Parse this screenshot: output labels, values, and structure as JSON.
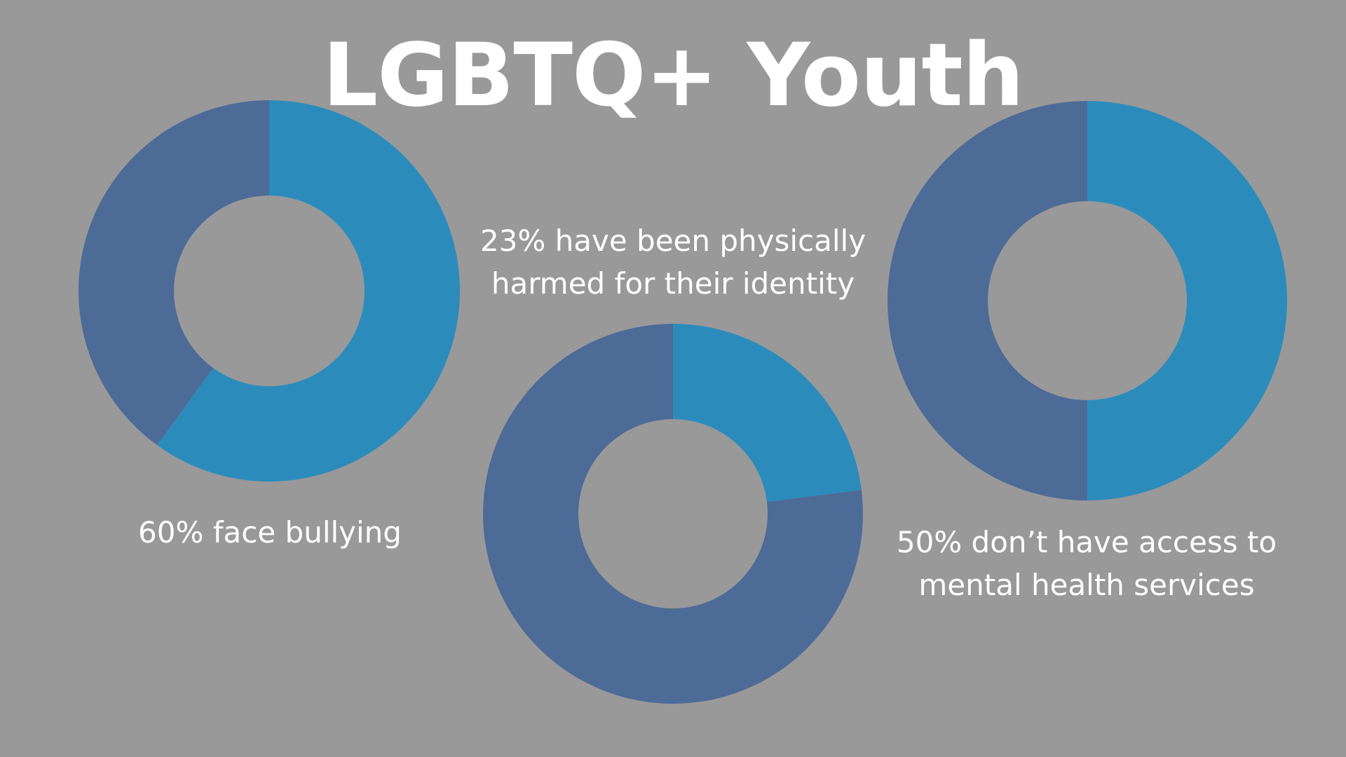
{
  "title": "LGBTQ+ Youth",
  "colors": {
    "background": "#999999",
    "highlight": "#2b8cbb",
    "remainder": "#4d6b97",
    "text": "#ffffff"
  },
  "chart_data": [
    {
      "type": "pie",
      "variant": "donut",
      "values": [
        60,
        40
      ],
      "caption_lines": [
        "60% face bullying"
      ]
    },
    {
      "type": "pie",
      "variant": "donut",
      "values": [
        23,
        77
      ],
      "caption_lines": [
        "23% have been physically",
        "harmed for their identity"
      ]
    },
    {
      "type": "pie",
      "variant": "donut",
      "values": [
        50,
        50
      ],
      "caption_lines": [
        "50% don’t have access to",
        "mental health services"
      ]
    }
  ]
}
